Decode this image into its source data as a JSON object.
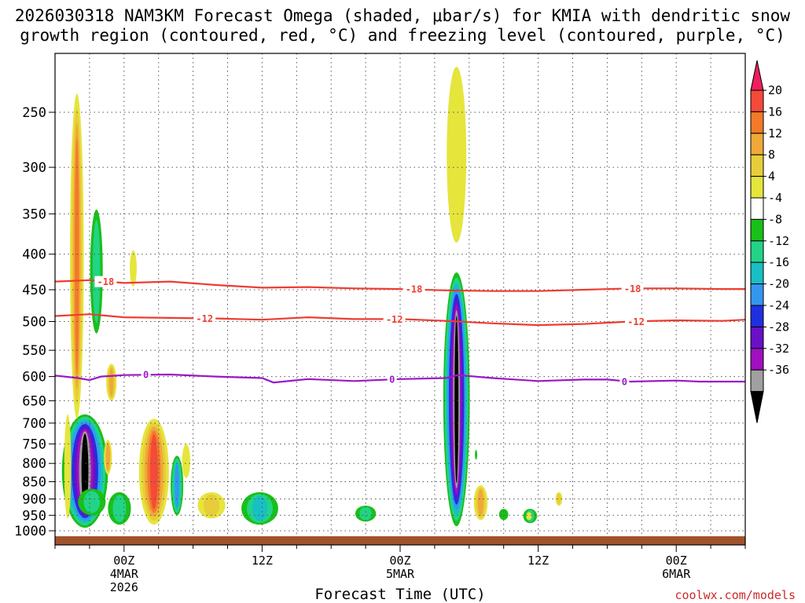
{
  "title": {
    "line1": "2026030318 NAM3KM Forecast Omega (shaded, μbar/s) for KMIA with dendritic snow",
    "line2": "growth region (contoured, red, °C) and freezing level (contoured, purple, °C)"
  },
  "credit": "coolwx.com/models",
  "chart_data": {
    "type": "heatmap",
    "title": "2026030318 NAM3KM Forecast Omega (shaded, μbar/s) for KMIA with dendritic snow growth region (contoured, red, °C) and freezing level (contoured, purple, °C)",
    "xlabel": "Forecast Time (UTC)",
    "ylabel": "",
    "x_unit": "hours from 2026030318",
    "xlim": [
      0,
      60
    ],
    "y_scale": "log-pressure",
    "ylim_hPa": [
      1000,
      200
    ],
    "y_ticks": [
      250,
      300,
      350,
      400,
      450,
      500,
      550,
      600,
      650,
      700,
      750,
      800,
      850,
      900,
      950,
      1000
    ],
    "x_ticks": [
      {
        "hour": 6,
        "lines": [
          "00Z",
          "4MAR",
          "2026"
        ]
      },
      {
        "hour": 18,
        "lines": [
          "12Z"
        ]
      },
      {
        "hour": 30,
        "lines": [
          "00Z",
          "5MAR"
        ]
      },
      {
        "hour": 42,
        "lines": [
          "12Z"
        ]
      },
      {
        "hour": 54,
        "lines": [
          "00Z",
          "6MAR"
        ]
      }
    ],
    "grid": "dotted",
    "colorbar": {
      "levels": [
        20,
        16,
        12,
        8,
        4,
        -4,
        -8,
        -12,
        -16,
        -20,
        -24,
        -28,
        -32,
        -36
      ],
      "colors": [
        "#ee1f5c",
        "#f44a3a",
        "#f27a28",
        "#f0a838",
        "#e8cd3a",
        "#e5e53c",
        "#ffffff",
        "#19c019",
        "#22d486",
        "#18bfc4",
        "#3596f0",
        "#2030e0",
        "#6a10c8",
        "#a010c0",
        "#a0a0a0",
        "#000000"
      ]
    },
    "omega_regions": [
      {
        "name": "updraft-core-1",
        "time_range": [
          1.3,
          4.2
        ],
        "p_range": [
          690,
          985
        ],
        "min_value": -36
      },
      {
        "name": "updraft-core-2",
        "time_range": [
          33.9,
          35.9
        ],
        "p_range": [
          430,
          985
        ],
        "min_value": -36
      },
      {
        "name": "subsidence-column",
        "time_range": [
          1.5,
          2.5
        ],
        "p_range": [
          240,
          740
        ],
        "max_value": 20
      },
      {
        "name": "subsidence-column-2",
        "time_range": [
          33.8,
          35.9
        ],
        "p_range": [
          220,
          380
        ],
        "max_value": 8
      },
      {
        "name": "subsidence-low-1",
        "time_range": [
          6.5,
          10.5
        ],
        "p_range": [
          720,
          960
        ],
        "max_value": 20
      }
    ],
    "series": [
      {
        "name": "-18",
        "color": "#ee3d30",
        "points": [
          [
            0,
            438
          ],
          [
            3,
            436
          ],
          [
            6,
            440
          ],
          [
            10,
            438
          ],
          [
            14,
            443
          ],
          [
            18,
            447
          ],
          [
            22,
            446
          ],
          [
            26,
            448
          ],
          [
            30,
            449
          ],
          [
            34,
            451
          ],
          [
            38,
            452
          ],
          [
            42,
            452
          ],
          [
            46,
            450
          ],
          [
            50,
            448
          ],
          [
            54,
            448
          ],
          [
            58,
            449
          ],
          [
            60,
            449
          ]
        ],
        "labels": [
          {
            "x": 4.4,
            "y": 438
          },
          {
            "x": 31.2,
            "y": 449
          },
          {
            "x": 50.2,
            "y": 448
          }
        ]
      },
      {
        "name": "-12",
        "color": "#ee3d30",
        "points": [
          [
            0,
            491
          ],
          [
            3,
            488
          ],
          [
            6,
            493
          ],
          [
            10,
            494
          ],
          [
            14,
            495
          ],
          [
            18,
            497
          ],
          [
            22,
            493
          ],
          [
            26,
            496
          ],
          [
            30,
            496
          ],
          [
            34,
            499
          ],
          [
            38,
            503
          ],
          [
            42,
            506
          ],
          [
            46,
            504
          ],
          [
            50,
            500
          ],
          [
            54,
            498
          ],
          [
            58,
            499
          ],
          [
            60,
            497
          ]
        ],
        "labels": [
          {
            "x": 13.0,
            "y": 495
          },
          {
            "x": 29.5,
            "y": 496
          },
          {
            "x": 50.5,
            "y": 500
          }
        ]
      },
      {
        "name": "0",
        "color": "#9b17c8",
        "points": [
          [
            0,
            598
          ],
          [
            2,
            603
          ],
          [
            3,
            607
          ],
          [
            4,
            600
          ],
          [
            6,
            597
          ],
          [
            10,
            596
          ],
          [
            14,
            600
          ],
          [
            18,
            603
          ],
          [
            19,
            612
          ],
          [
            22,
            605
          ],
          [
            26,
            609
          ],
          [
            30,
            605
          ],
          [
            34,
            603
          ],
          [
            35,
            597
          ],
          [
            38,
            603
          ],
          [
            42,
            609
          ],
          [
            46,
            606
          ],
          [
            48,
            606
          ],
          [
            50,
            610
          ],
          [
            54,
            608
          ],
          [
            56,
            610
          ],
          [
            60,
            610
          ]
        ],
        "labels": [
          {
            "x": 7.9,
            "y": 596
          },
          {
            "x": 29.3,
            "y": 605
          },
          {
            "x": 49.5,
            "y": 610
          }
        ]
      }
    ]
  }
}
